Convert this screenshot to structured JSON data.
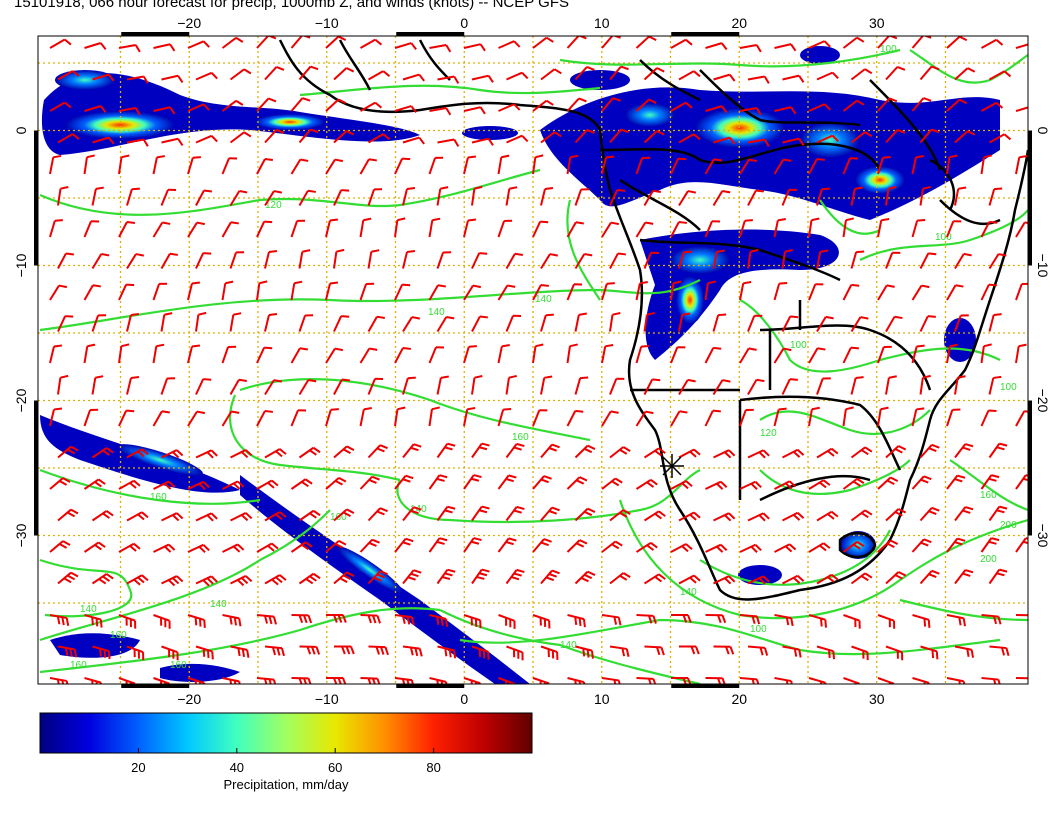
{
  "title": "15101918, 066 hour forecast for precip, 1000mb Z, and winds (knots) -- NCEP GFS",
  "map": {
    "lon_range": [
      -31,
      41
    ],
    "lat_range": [
      -41,
      7
    ],
    "x_ticks": [
      -20,
      -10,
      0,
      10,
      20,
      30
    ],
    "y_ticks": [
      0,
      -10,
      -20,
      -30
    ],
    "x_tick_labels": [
      "−20",
      "−10",
      "0",
      "10",
      "20",
      "30"
    ],
    "y_tick_labels": [
      "0",
      "−10",
      "−20",
      "−30"
    ],
    "grid_color": "#e0b000",
    "wind_color": "#ee0000",
    "contour_color": "#33dd33",
    "coast_color": "#000000",
    "contour_labels": [
      "120",
      "140",
      "160",
      "140",
      "160",
      "140",
      "160",
      "160",
      "140",
      "140",
      "100",
      "100",
      "100",
      "100",
      "120",
      "160",
      "200",
      "200",
      "160",
      "100",
      "160",
      "140",
      "140"
    ],
    "marker_icon": "asterisk-icon"
  },
  "colorbar": {
    "ticks": [
      "20",
      "40",
      "60",
      "80"
    ],
    "tick_values": [
      20,
      40,
      60,
      80
    ],
    "range": [
      0,
      100
    ],
    "label": "Precipitation, mm/day",
    "colors": [
      "#000080",
      "#0000e0",
      "#0060ff",
      "#00c8ff",
      "#40ffc0",
      "#a0ff60",
      "#e8e800",
      "#ff9000",
      "#ff2000",
      "#c00000",
      "#600000"
    ]
  }
}
